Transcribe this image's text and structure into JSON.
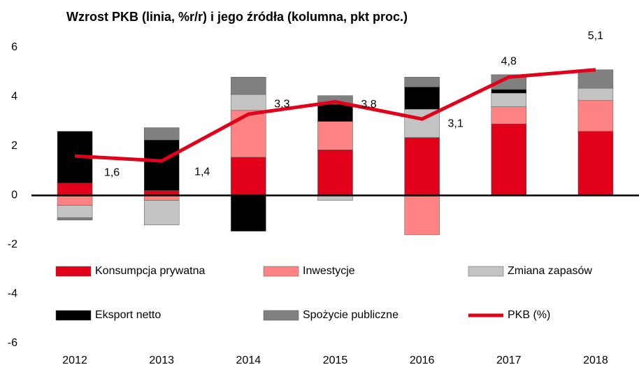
{
  "chart_data": {
    "type": "bar",
    "stacked": true,
    "title": "Wzrost PKB (linia, %r/r) i jego źródła (kolumna, pkt proc.)",
    "categories": [
      "2012",
      "2013",
      "2014",
      "2015",
      "2016",
      "2017",
      "2018"
    ],
    "ylim": [
      -6,
      6
    ],
    "yticks": [
      6,
      4,
      2,
      0,
      -2,
      -4,
      -6
    ],
    "series": [
      {
        "name": "Konsumpcja prywatna",
        "color": "#e2001a",
        "values": [
          0.5,
          0.2,
          1.55,
          1.85,
          2.35,
          2.9,
          2.6
        ]
      },
      {
        "name": "Inwestycje",
        "color": "#ff8383",
        "values": [
          -0.4,
          -0.2,
          1.9,
          1.15,
          -1.6,
          0.7,
          1.25
        ]
      },
      {
        "name": "Zmiana zapasów",
        "color": "#c3c3c3",
        "values": [
          -0.5,
          -1.0,
          0.65,
          -0.2,
          1.15,
          0.55,
          0.5
        ]
      },
      {
        "name": "Eksport netto",
        "color": "#000000",
        "values": [
          2.1,
          2.05,
          -1.45,
          0.7,
          0.9,
          0.15,
          0
        ]
      },
      {
        "name": "Spożycie publiczne",
        "color": "#808080",
        "values": [
          -0.1,
          0.5,
          0.7,
          0.35,
          0.4,
          0.6,
          0.75
        ]
      },
      {
        "name": "PKB (%)",
        "type": "line",
        "color": "#e2001a",
        "values": [
          1.6,
          1.4,
          3.3,
          3.8,
          3.1,
          4.8,
          5.1
        ],
        "value_labels": [
          "1,6",
          "1,4",
          "3,3",
          "3,8",
          "3,1",
          "4,8",
          "5,1"
        ]
      }
    ]
  }
}
